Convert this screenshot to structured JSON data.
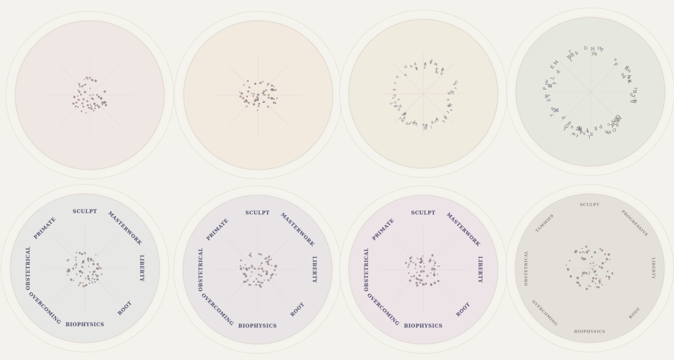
{
  "plates": [
    {
      "id": 1,
      "fill": "#efe7e3",
      "stage": "scatter",
      "seed": 11,
      "labels": []
    },
    {
      "id": 2,
      "fill": "#f2e9df",
      "stage": "scatter",
      "seed": 23,
      "labels": []
    },
    {
      "id": 3,
      "fill": "#efebdf",
      "stage": "ring",
      "seed": 37,
      "labels": []
    },
    {
      "id": 4,
      "fill": "#e6e7de",
      "stage": "ring-wide",
      "seed": 51,
      "labels": []
    },
    {
      "id": 5,
      "fill": "#e7e7e5",
      "stage": "labeled",
      "seed": 63,
      "labels": [
        "SCULPT",
        "MASTERWORK",
        "LIBERTY",
        "ROOT",
        "BIOPHYSICS",
        "OVERCOMING",
        "OBSTETRICAL",
        "PRIMATE"
      ]
    },
    {
      "id": 6,
      "fill": "#e9e5e6",
      "stage": "labeled",
      "seed": 77,
      "labels": [
        "SCULPT",
        "MASTERWORK",
        "LIBERTY",
        "ROOT",
        "BIOPHYSICS",
        "OVERCOMING",
        "OBSTETRICAL",
        "PRIMATE"
      ]
    },
    {
      "id": 7,
      "fill": "#ede4e8",
      "stage": "labeled",
      "seed": 89,
      "labels": [
        "SCULPT",
        "MASTERWORK",
        "LIBERTY",
        "ROOT",
        "BIOPHYSICS",
        "OVERCOMING",
        "OBSTETRICAL",
        "PRIMATE"
      ]
    },
    {
      "id": 8,
      "fill": "#e4e1da",
      "stage": "labeled-faint",
      "seed": 97,
      "labels": [
        "SCULPT",
        "PROGRESSIVE",
        "LIBERTY",
        "ROOT",
        "BIOPHYSICS",
        "OVERCOMING",
        "OBSTETRICAL",
        "TAMMIES"
      ]
    }
  ],
  "colors": {
    "ink": "#8a7f86",
    "label_ink": "#5c5467",
    "accent_blue": "#6d79a6",
    "accent_rose": "#b08a86"
  }
}
